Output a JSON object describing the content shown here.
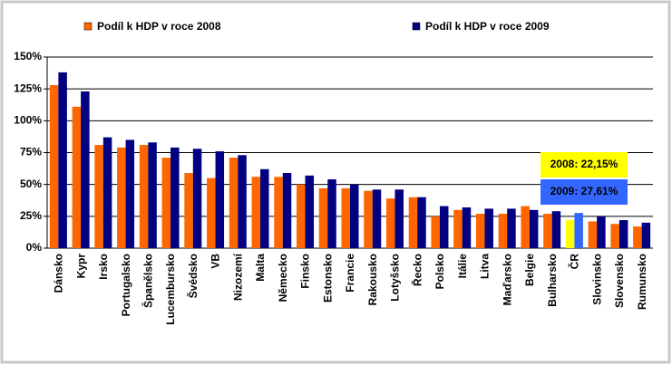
{
  "chart_data": {
    "type": "bar",
    "categories": [
      "Dánsko",
      "Kypr",
      "Irsko",
      "Portugalsko",
      "Španělsko",
      "Lucembursko",
      "Švédsko",
      "VB",
      "Nizozemí",
      "Malta",
      "Německo",
      "Finsko",
      "Estonsko",
      "Francie",
      "Rakousko",
      "Lotyšsko",
      "Řecko",
      "Polsko",
      "Itálie",
      "Litva",
      "Maďarsko",
      "Belgie",
      "Bulharsko",
      "ČR",
      "Slovinsko",
      "Slovensko",
      "Rumunsko"
    ],
    "series": [
      {
        "name": "Podíl k HDP v roce 2008",
        "color": "#ff6600",
        "colors": [
          "#ff6600",
          "#ff6600",
          "#ff6600",
          "#ff6600",
          "#ff6600",
          "#ff6600",
          "#ff6600",
          "#ff6600",
          "#ff6600",
          "#ff6600",
          "#ff6600",
          "#ff6600",
          "#ff6600",
          "#ff6600",
          "#ff6600",
          "#ff6600",
          "#ff6600",
          "#ff6600",
          "#ff6600",
          "#ff6600",
          "#ff6600",
          "#ff6600",
          "#ff6600",
          "#ffff00",
          "#ff6600",
          "#ff6600",
          "#ff6600"
        ],
        "values": [
          128,
          111,
          81,
          79,
          81,
          71,
          59,
          55,
          71,
          56,
          56,
          50,
          47,
          47,
          45,
          39,
          40,
          25,
          30,
          27,
          27,
          33,
          27,
          22.15,
          21,
          19,
          17
        ]
      },
      {
        "name": "Podíl k HDP v roce 2009",
        "color": "#000080",
        "colors": [
          "#000080",
          "#000080",
          "#000080",
          "#000080",
          "#000080",
          "#000080",
          "#000080",
          "#000080",
          "#000080",
          "#000080",
          "#000080",
          "#000080",
          "#000080",
          "#000080",
          "#000080",
          "#000080",
          "#000080",
          "#000080",
          "#000080",
          "#000080",
          "#000080",
          "#000080",
          "#000080",
          "#3366ff",
          "#000080",
          "#000080",
          "#000080"
        ],
        "values": [
          138,
          123,
          87,
          85,
          83,
          79,
          78,
          76,
          73,
          62,
          59,
          57,
          54,
          50,
          46,
          46,
          40,
          33,
          32,
          31,
          31,
          30,
          29,
          27.61,
          25,
          22,
          20
        ]
      }
    ],
    "annotations": [
      {
        "text": "2008: 22,15%",
        "color": "#ffff00"
      },
      {
        "text": "2009: 27,61%",
        "color": "#3366ff"
      }
    ],
    "ylim": [
      0,
      150
    ],
    "yticks": [
      {
        "value": 0,
        "label": "0%"
      },
      {
        "value": 25,
        "label": "25%"
      },
      {
        "value": 50,
        "label": "50%"
      },
      {
        "value": 75,
        "label": "75%"
      },
      {
        "value": 100,
        "label": "100%"
      },
      {
        "value": 125,
        "label": "125%"
      },
      {
        "value": 150,
        "label": "150%"
      }
    ],
    "grid": true
  }
}
